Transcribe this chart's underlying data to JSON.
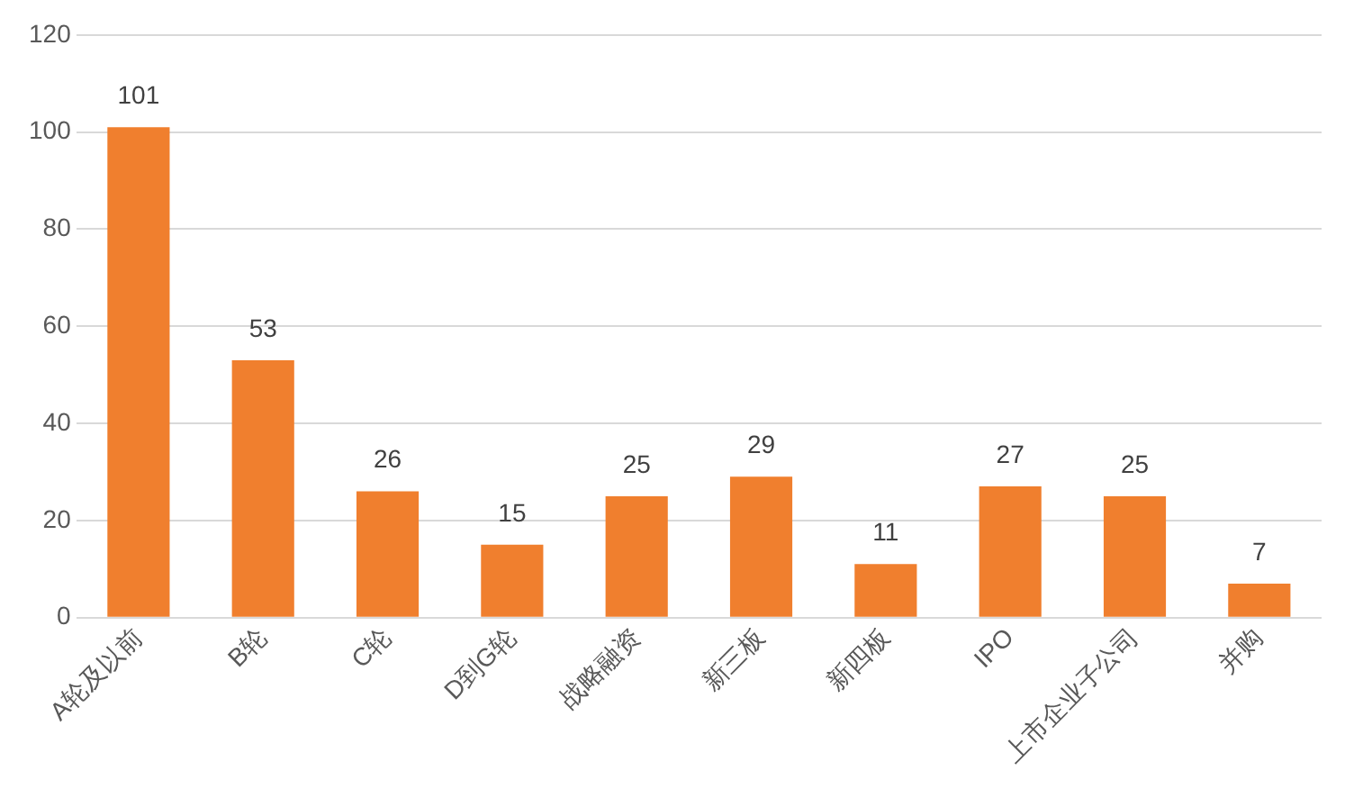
{
  "chart_data": {
    "type": "bar",
    "categories": [
      "A轮及以前",
      "B轮",
      "C轮",
      "D到G轮",
      "战略融资",
      "新三板",
      "新四板",
      "IPO",
      "上市企业子公司",
      "并购"
    ],
    "values": [
      101,
      53,
      26,
      15,
      25,
      29,
      11,
      27,
      25,
      7
    ],
    "color": "#f07f2e",
    "ylim": [
      0,
      120
    ],
    "yticks": [
      0,
      20,
      40,
      60,
      80,
      100,
      120
    ],
    "grid": "y",
    "data_labels": true,
    "legend": false
  }
}
